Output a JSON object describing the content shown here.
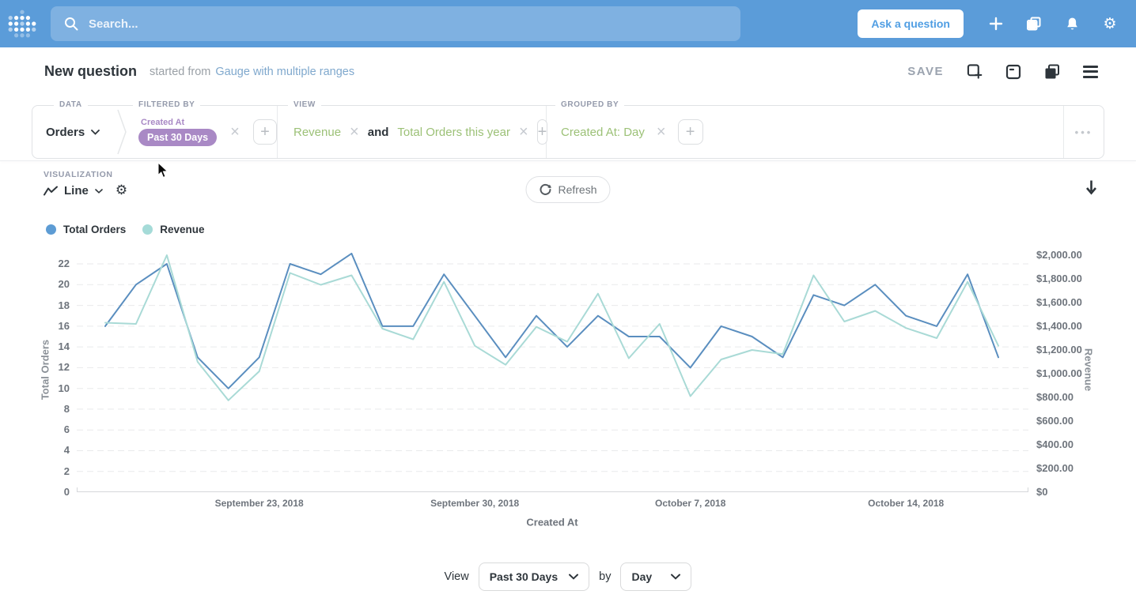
{
  "colors": {
    "nav_bg": "#5B9CD9",
    "brand_blue": "#509EE3",
    "filter_purple": "#A989C5",
    "metric_green": "#9CC177",
    "series_total_orders": "#5A8EBF",
    "series_revenue": "#A9DAD6",
    "text_dark": "#2E353B",
    "text_gray": "#949AAB"
  },
  "topbar": {
    "search_placeholder": "Search...",
    "ask_question_label": "Ask a question"
  },
  "header": {
    "title": "New question",
    "subtitle_prefix": "started from",
    "source_link": "Gauge with multiple ranges",
    "save_label": "SAVE"
  },
  "query_builder": {
    "data": {
      "section_label": "DATA",
      "table_name": "Orders"
    },
    "filtered_by": {
      "section_label": "FILTERED BY",
      "field_label": "Created At",
      "filter_value": "Past 30 Days"
    },
    "view": {
      "section_label": "VIEW",
      "metric1": "Revenue",
      "conjunction": "and",
      "metric2": "Total Orders this year"
    },
    "grouped_by": {
      "section_label": "GROUPED BY",
      "breakout": "Created At: Day"
    },
    "more_label": "•••"
  },
  "visualization": {
    "section_label": "VISUALIZATION",
    "type_label": "Line",
    "refresh_label": "Refresh"
  },
  "chart_data": {
    "type": "line",
    "x": [
      "2018-09-18",
      "2018-09-19",
      "2018-09-20",
      "2018-09-21",
      "2018-09-22",
      "2018-09-23",
      "2018-09-24",
      "2018-09-25",
      "2018-09-26",
      "2018-09-27",
      "2018-09-28",
      "2018-09-29",
      "2018-09-30",
      "2018-10-01",
      "2018-10-02",
      "2018-10-03",
      "2018-10-04",
      "2018-10-05",
      "2018-10-06",
      "2018-10-07",
      "2018-10-08",
      "2018-10-09",
      "2018-10-10",
      "2018-10-11",
      "2018-10-12",
      "2018-10-13",
      "2018-10-14",
      "2018-10-15",
      "2018-10-16",
      "2018-10-17"
    ],
    "series": [
      {
        "name": "Total Orders",
        "axis": "left",
        "color": "#5A8EBF",
        "values": [
          16,
          20,
          22,
          13,
          10,
          13,
          22,
          21,
          23,
          16,
          16,
          21,
          17,
          13,
          17,
          14,
          17,
          15,
          15,
          12,
          16,
          15,
          13,
          19,
          18,
          20,
          17,
          16,
          21,
          13
        ]
      },
      {
        "name": "Revenue",
        "axis": "right",
        "color": "#A9DAD6",
        "values": [
          1430,
          1420,
          2000,
          1100,
          775,
          1020,
          1850,
          1750,
          1830,
          1380,
          1290,
          1775,
          1235,
          1075,
          1395,
          1270,
          1675,
          1130,
          1420,
          810,
          1120,
          1200,
          1165,
          1830,
          1440,
          1530,
          1385,
          1300,
          1775,
          1235
        ]
      }
    ],
    "xlabel": "Created At",
    "x_ticks": [
      {
        "index": 5,
        "label": "September 23, 2018"
      },
      {
        "index": 12,
        "label": "September 30, 2018"
      },
      {
        "index": 19,
        "label": "October 7, 2018"
      },
      {
        "index": 26,
        "label": "October 14, 2018"
      }
    ],
    "left_axis": {
      "label": "Total Orders",
      "ticks": [
        0,
        2,
        4,
        6,
        8,
        10,
        12,
        14,
        16,
        18,
        20,
        22
      ],
      "max": 23.45
    },
    "right_axis": {
      "label": "Revenue",
      "tick_values": [
        0,
        200,
        400,
        600,
        800,
        1000,
        1200,
        1400,
        1600,
        1800,
        2000
      ],
      "tick_labels": [
        "$0",
        "$200.00",
        "$400.00",
        "$600.00",
        "$800.00",
        "$1,000.00",
        "$1,200.00",
        "$1,400.00",
        "$1,600.00",
        "$1,800.00",
        "$2,000.00"
      ],
      "max": 2053
    },
    "grid": "dashed-horizontal",
    "legend_position": "top-left"
  },
  "footer": {
    "view_label": "View",
    "range_value": "Past 30 Days",
    "by_label": "by",
    "granularity_value": "Day"
  }
}
